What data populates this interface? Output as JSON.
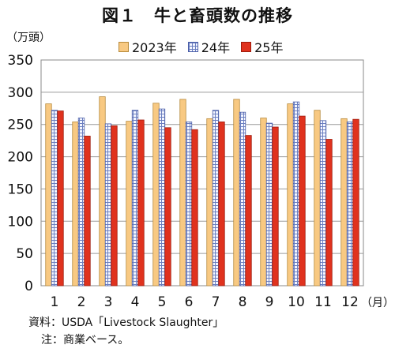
{
  "chart_data": {
    "type": "bar",
    "title": "図１　牛と畜頭数の推移",
    "ylabel": "（万頭）",
    "xlabel": "（月）",
    "ylim": [
      0,
      350
    ],
    "yticks": [
      0,
      50,
      100,
      150,
      200,
      250,
      300,
      350
    ],
    "grid": true,
    "legend_position": "top",
    "categories": [
      "1",
      "2",
      "3",
      "4",
      "5",
      "6",
      "7",
      "8",
      "9",
      "10",
      "11",
      "12"
    ],
    "series": [
      {
        "name": "2023年",
        "color": "#f8c982",
        "values": [
          282,
          254,
          293,
          255,
          283,
          289,
          259,
          289,
          260,
          282,
          272,
          259
        ]
      },
      {
        "name": "24年",
        "color": "#6b7fc0",
        "values": [
          272,
          260,
          251,
          272,
          274,
          254,
          272,
          269,
          252,
          285,
          256,
          254
        ]
      },
      {
        "name": "25年",
        "color": "#e0321e",
        "values": [
          271,
          232,
          248,
          257,
          245,
          242,
          254,
          233,
          246,
          263,
          227,
          258
        ]
      }
    ]
  },
  "footnotes": {
    "source": "資料：USDA「Livestock Slaughter」",
    "note": "注：商業ベース。"
  }
}
